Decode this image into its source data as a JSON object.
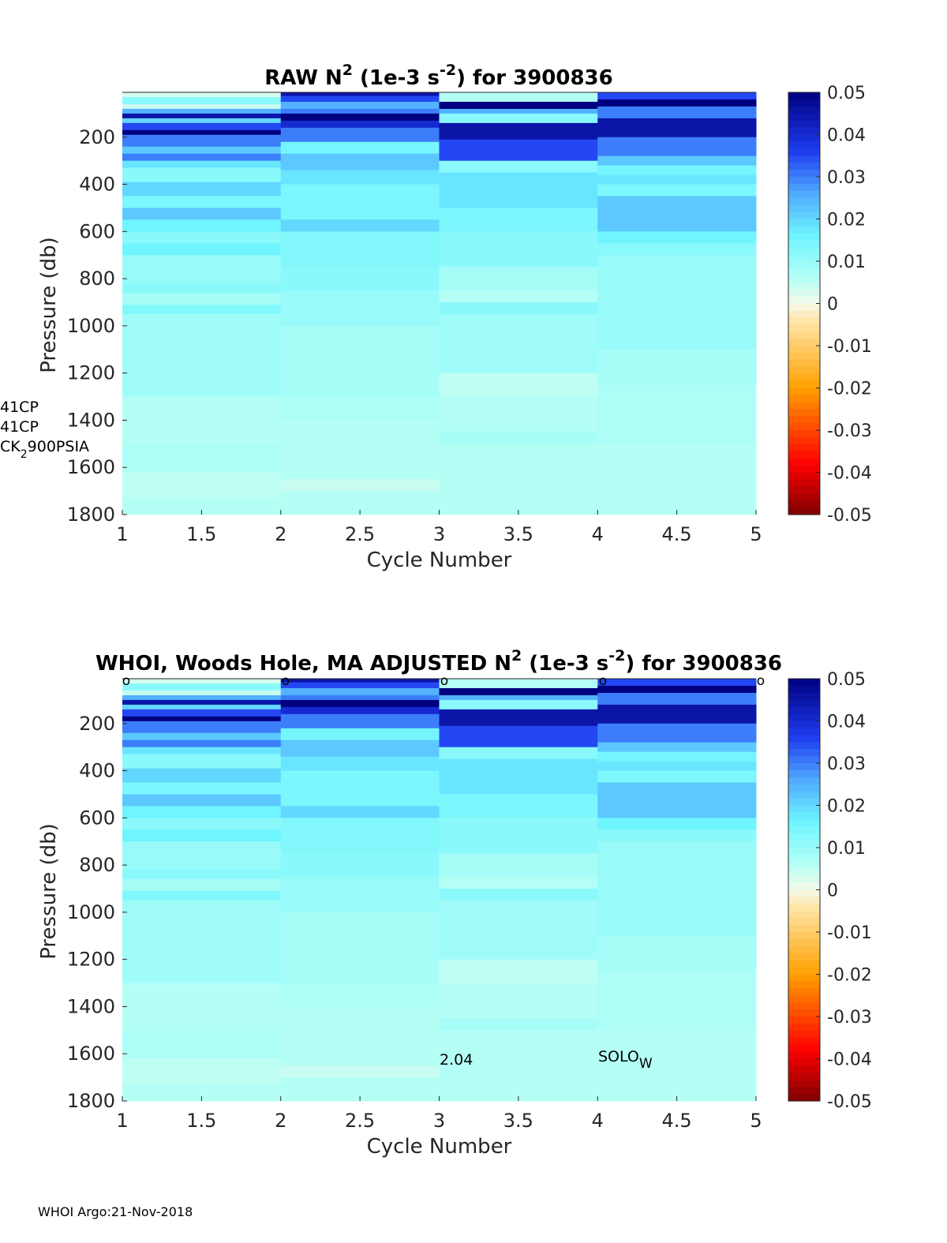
{
  "footer": "WHOI Argo:21-Nov-2018",
  "side_labels": [
    "41CP",
    "41CP",
    "CK",
    "2",
    "900PSIA"
  ],
  "raw_title": {
    "pre": "RAW N",
    "sup1": "2",
    "mid": " (1e-3 s",
    "sup2": "-2",
    "post": ") for 3900836"
  },
  "adj_title": {
    "pre": "WHOI, Woods Hole, MA  ADJUSTED N",
    "sup1": "2",
    "mid": " (1e-3 s",
    "sup2": "-2",
    "post": ") for 3900836"
  },
  "annotations": {
    "firmware": "2.04",
    "solo": "SOLO",
    "solo_sub": "W",
    "marker": "o"
  },
  "chart_data": [
    {
      "type": "heatmap",
      "id": "raw",
      "xlabel": "Cycle Number",
      "ylabel": "Pressure (db)",
      "x_ticks": [
        "1",
        "1.5",
        "2",
        "2.5",
        "3",
        "3.5",
        "4",
        "4.5",
        "5"
      ],
      "y_ticks": [
        "200",
        "400",
        "600",
        "800",
        "1000",
        "1200",
        "1400",
        "1600",
        "1800"
      ],
      "xlim": [
        1,
        5
      ],
      "ylim": [
        10,
        1800
      ],
      "y_reversed": true,
      "colorbar": {
        "ticks": [
          "0.05",
          "0.04",
          "0.03",
          "0.02",
          "0.01",
          "0",
          "-0.01",
          "-0.02",
          "-0.03",
          "-0.04",
          "-0.05"
        ],
        "range": [
          -0.05,
          0.05
        ]
      },
      "columns": [
        {
          "x": [
            1,
            2
          ],
          "bands": [
            [
              10,
              30,
              0.003
            ],
            [
              30,
              60,
              0.012
            ],
            [
              60,
              80,
              0.004
            ],
            [
              80,
              100,
              0.025
            ],
            [
              100,
              120,
              0.045
            ],
            [
              120,
              140,
              0.02
            ],
            [
              140,
              170,
              0.035
            ],
            [
              170,
              190,
              0.05
            ],
            [
              190,
              240,
              0.03
            ],
            [
              240,
              270,
              0.022
            ],
            [
              270,
              300,
              0.03
            ],
            [
              300,
              330,
              0.018
            ],
            [
              330,
              390,
              0.012
            ],
            [
              390,
              450,
              0.02
            ],
            [
              450,
              500,
              0.014
            ],
            [
              500,
              550,
              0.022
            ],
            [
              550,
              600,
              0.016
            ],
            [
              600,
              650,
              0.012
            ],
            [
              650,
              700,
              0.016
            ],
            [
              700,
              820,
              0.01
            ],
            [
              820,
              860,
              0.012
            ],
            [
              860,
              910,
              0.008
            ],
            [
              910,
              950,
              0.013
            ],
            [
              950,
              1300,
              0.009
            ],
            [
              1300,
              1500,
              0.006
            ],
            [
              1500,
              1620,
              0.007
            ],
            [
              1620,
              1730,
              0.005
            ],
            [
              1730,
              1800,
              0.006
            ]
          ]
        },
        {
          "x": [
            2,
            3
          ],
          "bands": [
            [
              10,
              25,
              0.045
            ],
            [
              25,
              50,
              0.035
            ],
            [
              50,
              80,
              0.025
            ],
            [
              80,
              100,
              0.03
            ],
            [
              100,
              130,
              0.05
            ],
            [
              130,
              160,
              0.04
            ],
            [
              160,
              220,
              0.03
            ],
            [
              220,
              270,
              0.015
            ],
            [
              270,
              340,
              0.022
            ],
            [
              340,
              400,
              0.018
            ],
            [
              400,
              550,
              0.014
            ],
            [
              550,
              600,
              0.02
            ],
            [
              600,
              750,
              0.013
            ],
            [
              750,
              850,
              0.012
            ],
            [
              850,
              1000,
              0.01
            ],
            [
              1000,
              1300,
              0.008
            ],
            [
              1300,
              1400,
              0.007
            ],
            [
              1400,
              1650,
              0.006
            ],
            [
              1650,
              1700,
              0.004
            ],
            [
              1700,
              1800,
              0.006
            ]
          ]
        },
        {
          "x": [
            3,
            4
          ],
          "bands": [
            [
              10,
              50,
              0.006
            ],
            [
              50,
              80,
              0.05
            ],
            [
              80,
              100,
              0.025
            ],
            [
              100,
              140,
              0.012
            ],
            [
              140,
              210,
              0.045
            ],
            [
              210,
              300,
              0.035
            ],
            [
              300,
              350,
              0.012
            ],
            [
              350,
              500,
              0.018
            ],
            [
              500,
              600,
              0.014
            ],
            [
              600,
              750,
              0.012
            ],
            [
              750,
              850,
              0.008
            ],
            [
              850,
              900,
              0.006
            ],
            [
              900,
              950,
              0.012
            ],
            [
              950,
              1200,
              0.009
            ],
            [
              1200,
              1300,
              0.005
            ],
            [
              1300,
              1450,
              0.006
            ],
            [
              1450,
              1500,
              0.008
            ],
            [
              1500,
              1800,
              0.006
            ]
          ]
        },
        {
          "x": [
            4,
            5
          ],
          "bands": [
            [
              10,
              40,
              0.035
            ],
            [
              40,
              70,
              0.05
            ],
            [
              70,
              120,
              0.03
            ],
            [
              120,
              200,
              0.045
            ],
            [
              200,
              280,
              0.03
            ],
            [
              280,
              320,
              0.022
            ],
            [
              320,
              360,
              0.015
            ],
            [
              360,
              400,
              0.018
            ],
            [
              400,
              450,
              0.014
            ],
            [
              450,
              600,
              0.022
            ],
            [
              600,
              650,
              0.016
            ],
            [
              650,
              700,
              0.012
            ],
            [
              700,
              1100,
              0.01
            ],
            [
              1100,
              1250,
              0.008
            ],
            [
              1250,
              1500,
              0.007
            ],
            [
              1500,
              1800,
              0.006
            ]
          ]
        }
      ]
    },
    {
      "type": "heatmap",
      "id": "adjusted",
      "xlabel": "Cycle Number",
      "ylabel": "Pressure (db)",
      "x_ticks": [
        "1",
        "1.5",
        "2",
        "2.5",
        "3",
        "3.5",
        "4",
        "4.5",
        "5"
      ],
      "y_ticks": [
        "200",
        "400",
        "600",
        "800",
        "1000",
        "1200",
        "1400",
        "1600",
        "1800"
      ],
      "xlim": [
        1,
        5
      ],
      "ylim": [
        10,
        1800
      ],
      "y_reversed": true,
      "colorbar": {
        "ticks": [
          "0.05",
          "0.04",
          "0.03",
          "0.02",
          "0.01",
          "0",
          "-0.01",
          "-0.02",
          "-0.03",
          "-0.04",
          "-0.05"
        ],
        "range": [
          -0.05,
          0.05
        ]
      },
      "columns": [
        {
          "x": [
            1,
            2
          ],
          "bands": [
            [
              10,
              30,
              0.003
            ],
            [
              30,
              60,
              0.012
            ],
            [
              60,
              80,
              0.004
            ],
            [
              80,
              100,
              0.025
            ],
            [
              100,
              120,
              0.045
            ],
            [
              120,
              140,
              0.02
            ],
            [
              140,
              170,
              0.035
            ],
            [
              170,
              190,
              0.05
            ],
            [
              190,
              240,
              0.03
            ],
            [
              240,
              270,
              0.022
            ],
            [
              270,
              300,
              0.03
            ],
            [
              300,
              330,
              0.018
            ],
            [
              330,
              390,
              0.012
            ],
            [
              390,
              450,
              0.02
            ],
            [
              450,
              500,
              0.014
            ],
            [
              500,
              550,
              0.022
            ],
            [
              550,
              600,
              0.016
            ],
            [
              600,
              650,
              0.012
            ],
            [
              650,
              700,
              0.016
            ],
            [
              700,
              820,
              0.01
            ],
            [
              820,
              860,
              0.012
            ],
            [
              860,
              910,
              0.008
            ],
            [
              910,
              950,
              0.013
            ],
            [
              950,
              1300,
              0.009
            ],
            [
              1300,
              1500,
              0.006
            ],
            [
              1500,
              1620,
              0.007
            ],
            [
              1620,
              1730,
              0.005
            ],
            [
              1730,
              1800,
              0.006
            ]
          ]
        },
        {
          "x": [
            2,
            3
          ],
          "bands": [
            [
              10,
              25,
              0.045
            ],
            [
              25,
              50,
              0.035
            ],
            [
              50,
              80,
              0.025
            ],
            [
              80,
              100,
              0.03
            ],
            [
              100,
              130,
              0.05
            ],
            [
              130,
              160,
              0.04
            ],
            [
              160,
              220,
              0.03
            ],
            [
              220,
              270,
              0.015
            ],
            [
              270,
              340,
              0.022
            ],
            [
              340,
              400,
              0.018
            ],
            [
              400,
              550,
              0.014
            ],
            [
              550,
              600,
              0.02
            ],
            [
              600,
              750,
              0.013
            ],
            [
              750,
              850,
              0.012
            ],
            [
              850,
              1000,
              0.01
            ],
            [
              1000,
              1300,
              0.008
            ],
            [
              1300,
              1400,
              0.007
            ],
            [
              1400,
              1650,
              0.006
            ],
            [
              1650,
              1700,
              0.004
            ],
            [
              1700,
              1800,
              0.006
            ]
          ]
        },
        {
          "x": [
            3,
            4
          ],
          "bands": [
            [
              10,
              50,
              0.006
            ],
            [
              50,
              80,
              0.05
            ],
            [
              80,
              100,
              0.025
            ],
            [
              100,
              140,
              0.012
            ],
            [
              140,
              210,
              0.045
            ],
            [
              210,
              300,
              0.035
            ],
            [
              300,
              350,
              0.012
            ],
            [
              350,
              500,
              0.018
            ],
            [
              500,
              600,
              0.014
            ],
            [
              600,
              750,
              0.012
            ],
            [
              750,
              850,
              0.008
            ],
            [
              850,
              900,
              0.006
            ],
            [
              900,
              950,
              0.012
            ],
            [
              950,
              1200,
              0.009
            ],
            [
              1200,
              1300,
              0.005
            ],
            [
              1300,
              1450,
              0.006
            ],
            [
              1450,
              1500,
              0.008
            ],
            [
              1500,
              1800,
              0.006
            ]
          ]
        },
        {
          "x": [
            4,
            5
          ],
          "bands": [
            [
              10,
              40,
              0.035
            ],
            [
              40,
              70,
              0.05
            ],
            [
              70,
              120,
              0.03
            ],
            [
              120,
              200,
              0.045
            ],
            [
              200,
              280,
              0.03
            ],
            [
              280,
              320,
              0.022
            ],
            [
              320,
              360,
              0.015
            ],
            [
              360,
              400,
              0.018
            ],
            [
              400,
              450,
              0.014
            ],
            [
              450,
              600,
              0.022
            ],
            [
              600,
              650,
              0.016
            ],
            [
              650,
              700,
              0.012
            ],
            [
              700,
              1100,
              0.01
            ],
            [
              1100,
              1250,
              0.008
            ],
            [
              1250,
              1500,
              0.007
            ],
            [
              1500,
              1800,
              0.006
            ]
          ]
        }
      ]
    }
  ]
}
